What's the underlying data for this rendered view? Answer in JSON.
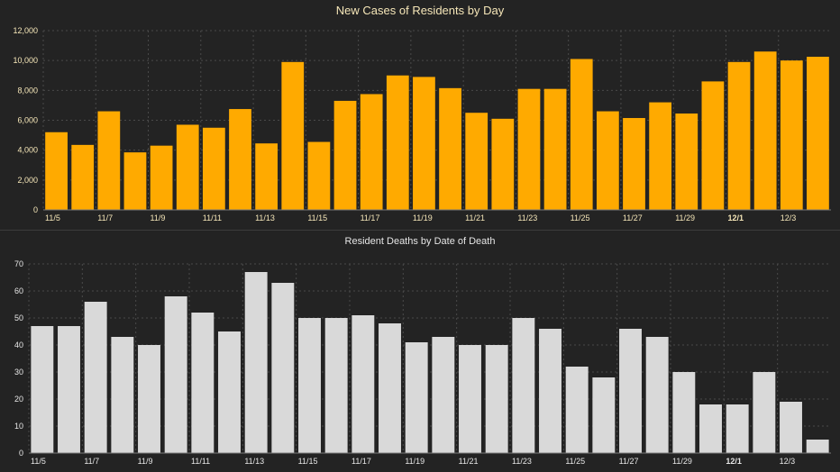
{
  "chart_data": [
    {
      "type": "bar",
      "title": "New Cases of Residents by Day",
      "color": "#FFAA00",
      "title_color": "#F5E6B8",
      "tick_color": "#F5E6B8",
      "categories": [
        "11/5",
        "11/6",
        "11/7",
        "11/8",
        "11/9",
        "11/10",
        "11/11",
        "11/12",
        "11/13",
        "11/14",
        "11/15",
        "11/16",
        "11/17",
        "11/18",
        "11/19",
        "11/20",
        "11/21",
        "11/22",
        "11/23",
        "11/24",
        "11/25",
        "11/26",
        "11/27",
        "11/28",
        "11/29",
        "11/30",
        "12/1",
        "12/2",
        "12/3",
        "12/4"
      ],
      "x_tick_labels": [
        "11/5",
        "11/7",
        "11/9",
        "11/11",
        "11/13",
        "11/15",
        "11/17",
        "11/19",
        "11/21",
        "11/23",
        "11/25",
        "11/27",
        "11/29",
        "12/1",
        "12/3"
      ],
      "bold_tick": "12/1",
      "values": [
        5200,
        4350,
        6600,
        3850,
        4300,
        5700,
        5500,
        6750,
        4450,
        9900,
        4550,
        7300,
        7750,
        9000,
        8900,
        8150,
        6500,
        6100,
        8100,
        8100,
        10100,
        6600,
        6150,
        7200,
        6450,
        8600,
        9900,
        10600,
        10000,
        10250
      ],
      "ylim": [
        0,
        12000
      ],
      "yticks": [
        "0",
        "2,000",
        "4,000",
        "6,000",
        "8,000",
        "10,000",
        "12,000"
      ],
      "grid": true
    },
    {
      "type": "bar",
      "title": "Resident Deaths by Date of Death",
      "color": "#D9D9D9",
      "title_color": "#E6E6E6",
      "tick_color": "#E6E6E6",
      "categories": [
        "11/5",
        "11/6",
        "11/7",
        "11/8",
        "11/9",
        "11/10",
        "11/11",
        "11/12",
        "11/13",
        "11/14",
        "11/15",
        "11/16",
        "11/17",
        "11/18",
        "11/19",
        "11/20",
        "11/21",
        "11/22",
        "11/23",
        "11/24",
        "11/25",
        "11/26",
        "11/27",
        "11/28",
        "11/29",
        "11/30",
        "12/1",
        "12/2",
        "12/3",
        "12/4"
      ],
      "x_tick_labels": [
        "11/5",
        "11/7",
        "11/9",
        "11/11",
        "11/13",
        "11/15",
        "11/17",
        "11/19",
        "11/21",
        "11/23",
        "11/25",
        "11/27",
        "11/29",
        "12/1",
        "12/3"
      ],
      "bold_tick": "12/1",
      "values": [
        47,
        47,
        56,
        43,
        40,
        58,
        52,
        45,
        67,
        63,
        50,
        50,
        51,
        48,
        41,
        43,
        40,
        40,
        50,
        46,
        32,
        28,
        46,
        43,
        30,
        18,
        18,
        30,
        19,
        5
      ],
      "ylim": [
        0,
        70
      ],
      "yticks": [
        "0",
        "10",
        "20",
        "30",
        "40",
        "50",
        "60",
        "70"
      ],
      "grid": true
    }
  ]
}
